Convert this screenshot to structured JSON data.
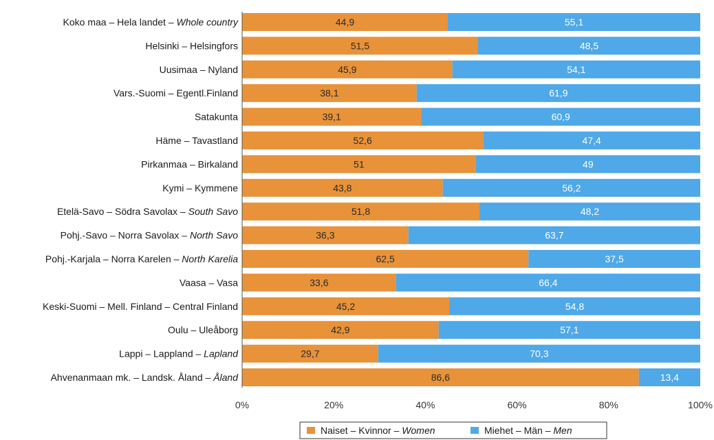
{
  "chart_data": {
    "type": "bar",
    "stacked": true,
    "orientation": "horizontal",
    "categories": [
      {
        "parts": [
          {
            "t": "Koko maa – Hela landet – ",
            "i": false
          },
          {
            "t": "Whole country",
            "i": true
          }
        ]
      },
      {
        "parts": [
          {
            "t": "Helsinki – Helsingfors",
            "i": false
          }
        ]
      },
      {
        "parts": [
          {
            "t": "Uusimaa – Nyland",
            "i": false
          }
        ]
      },
      {
        "parts": [
          {
            "t": "Vars.-Suomi – Egentl.Finland",
            "i": false
          }
        ]
      },
      {
        "parts": [
          {
            "t": "Satakunta",
            "i": false
          }
        ]
      },
      {
        "parts": [
          {
            "t": "Häme – Tavastland",
            "i": false
          }
        ]
      },
      {
        "parts": [
          {
            "t": "Pirkanmaa – Birkaland",
            "i": false
          }
        ]
      },
      {
        "parts": [
          {
            "t": "Kymi – Kymmene",
            "i": false
          }
        ]
      },
      {
        "parts": [
          {
            "t": "Etelä-Savo – Södra Savolax – ",
            "i": false
          },
          {
            "t": "South Savo",
            "i": true
          }
        ]
      },
      {
        "parts": [
          {
            "t": "Pohj.-Savo – Norra Savolax – ",
            "i": false
          },
          {
            "t": "North Savo",
            "i": true
          }
        ]
      },
      {
        "parts": [
          {
            "t": "Pohj.-Karjala – Norra Karelen – ",
            "i": false
          },
          {
            "t": "North Karelia",
            "i": true
          }
        ]
      },
      {
        "parts": [
          {
            "t": "Vaasa – Vasa",
            "i": false
          }
        ]
      },
      {
        "parts": [
          {
            "t": "Keski-Suomi – Mell. Finland – Central Finland",
            "i": false
          }
        ]
      },
      {
        "parts": [
          {
            "t": "Oulu – Uleåborg",
            "i": false
          }
        ]
      },
      {
        "parts": [
          {
            "t": "Lappi – Lappland – ",
            "i": false
          },
          {
            "t": "Lapland",
            "i": true
          }
        ]
      },
      {
        "parts": [
          {
            "t": "Ahvenanmaan mk. – Landsk. Åland – ",
            "i": false
          },
          {
            "t": "Åland",
            "i": true
          }
        ]
      }
    ],
    "series": [
      {
        "name_parts": [
          {
            "t": "Naiset – Kvinnor – ",
            "i": false
          },
          {
            "t": "Women",
            "i": true
          }
        ],
        "color": "#E8923A",
        "values": [
          44.9,
          51.5,
          45.9,
          38.1,
          39.1,
          52.6,
          51,
          43.8,
          51.8,
          36.3,
          62.5,
          33.6,
          45.2,
          42.9,
          29.7,
          86.6
        ],
        "labels": [
          "44,9",
          "51,5",
          "45,9",
          "38,1",
          "39,1",
          "52,6",
          "51",
          "43,8",
          "51,8",
          "36,3",
          "62,5",
          "33,6",
          "45,2",
          "42,9",
          "29,7",
          "86,6"
        ]
      },
      {
        "name_parts": [
          {
            "t": "Miehet – Män – ",
            "i": false
          },
          {
            "t": "Men",
            "i": true
          }
        ],
        "color": "#4FA8E8",
        "values": [
          55.1,
          48.5,
          54.1,
          61.9,
          60.9,
          47.4,
          49,
          56.2,
          48.2,
          63.7,
          37.5,
          66.4,
          54.8,
          57.1,
          70.3,
          13.4
        ],
        "labels": [
          "55,1",
          "48,5",
          "54,1",
          "61,9",
          "60,9",
          "47,4",
          "49",
          "56,2",
          "48,2",
          "63,7",
          "37,5",
          "66,4",
          "54,8",
          "57,1",
          "70,3",
          "13,4"
        ]
      }
    ],
    "xlim": [
      0,
      100
    ],
    "x_ticks": [
      "0%",
      "20%",
      "40%",
      "60%",
      "80%",
      "100%"
    ],
    "legend_position": "bottom",
    "grid": false
  }
}
